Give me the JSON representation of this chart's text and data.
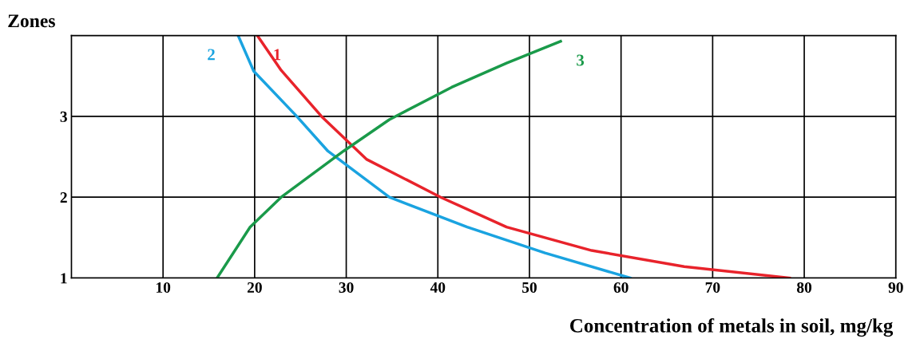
{
  "chart_data": {
    "type": "line",
    "xlabel": "Concentration of metals in soil, mg/kg",
    "ylabel": "Zones",
    "xlim": [
      0,
      90
    ],
    "xticks": [
      10,
      20,
      30,
      40,
      50,
      60,
      70,
      80,
      90
    ],
    "ylim": [
      1,
      4
    ],
    "yticks": [
      1,
      2,
      3
    ],
    "grid": true,
    "marker": "none",
    "line_style": "solid",
    "series": [
      {
        "name": "1",
        "color": "#e8232b",
        "x": [
          20.3,
          22.9,
          27.3,
          32.2,
          40.3,
          47.5,
          56.8,
          66.9,
          78.4
        ],
        "values": [
          4.0,
          3.57,
          3.0,
          2.47,
          2.0,
          1.63,
          1.34,
          1.14,
          1.0
        ]
      },
      {
        "name": "2",
        "color": "#1aa3e0",
        "x": [
          18.2,
          19.9,
          24.6,
          28.0,
          34.7,
          43.2,
          51.7,
          61.0
        ],
        "values": [
          4.0,
          3.56,
          3.0,
          2.57,
          2.0,
          1.63,
          1.31,
          1.0
        ]
      },
      {
        "name": "3",
        "color": "#1a9a4a",
        "x": [
          15.9,
          19.5,
          22.9,
          29.7,
          34.7,
          41.5,
          47.5,
          53.4
        ],
        "values": [
          1.0,
          1.63,
          2.0,
          2.57,
          2.96,
          3.36,
          3.66,
          3.93
        ]
      }
    ]
  }
}
